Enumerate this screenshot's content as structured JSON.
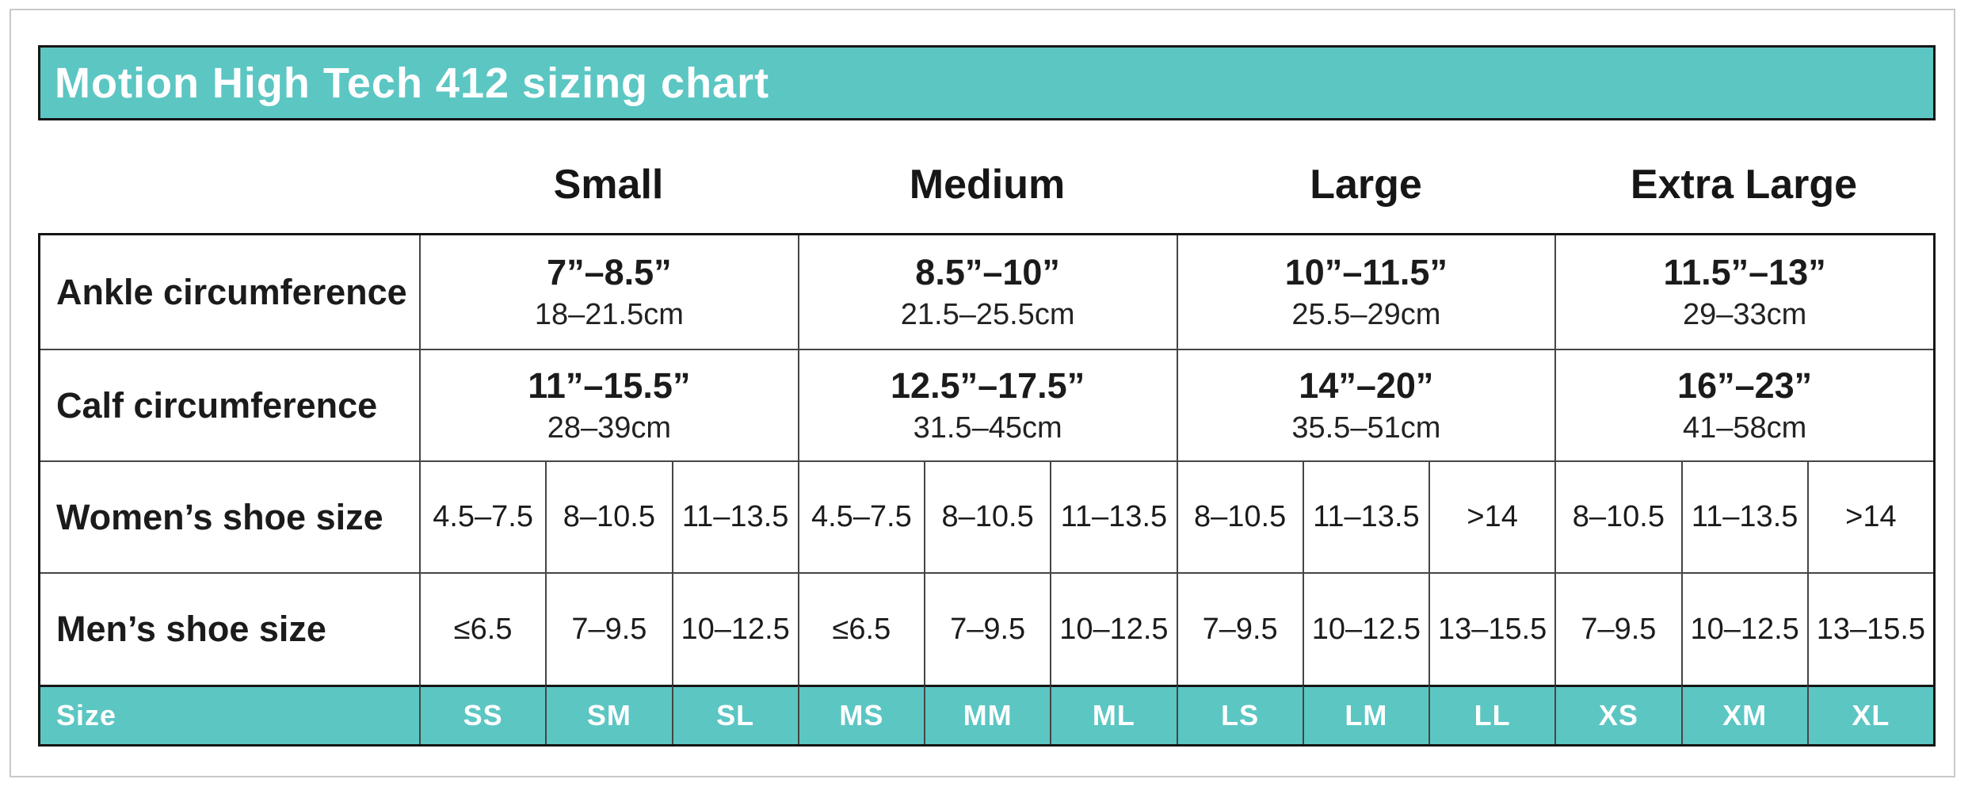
{
  "title": "Motion High Tech 412 sizing chart",
  "colors": {
    "teal": "#5CC6C3",
    "title_text": "#FFFFFF",
    "body_text": "#1B1B1B",
    "table_border": "#161616",
    "grid_line": "#454545",
    "page_frame": "#C9C9C9"
  },
  "group_headers": [
    {
      "label": "Small"
    },
    {
      "label": "Medium"
    },
    {
      "label": "Large"
    },
    {
      "label": "Extra Large"
    }
  ],
  "rows": {
    "ankle": {
      "label": "Ankle circumference",
      "groups": [
        {
          "inches": "7”–8.5”",
          "cm": "18–21.5cm"
        },
        {
          "inches": "8.5”–10”",
          "cm": "21.5–25.5cm"
        },
        {
          "inches": "10”–11.5”",
          "cm": "25.5–29cm"
        },
        {
          "inches": "11.5”–13”",
          "cm": "29–33cm"
        }
      ]
    },
    "calf": {
      "label": "Calf circumference",
      "groups": [
        {
          "inches": "11”–15.5”",
          "cm": "28–39cm"
        },
        {
          "inches": "12.5”–17.5”",
          "cm": "31.5–45cm"
        },
        {
          "inches": "14”–20”",
          "cm": "35.5–51cm"
        },
        {
          "inches": "16”–23”",
          "cm": "41–58cm"
        }
      ]
    },
    "women": {
      "label": "Women’s shoe size",
      "values": [
        "4.5–7.5",
        "8–10.5",
        "11–13.5",
        "4.5–7.5",
        "8–10.5",
        "11–13.5",
        "8–10.5",
        "11–13.5",
        ">14",
        "8–10.5",
        "11–13.5",
        ">14"
      ]
    },
    "men": {
      "label": "Men’s shoe size",
      "values": [
        "≤6.5",
        "7–9.5",
        "10–12.5",
        "≤6.5",
        "7–9.5",
        "10–12.5",
        "7–9.5",
        "10–12.5",
        "13–15.5",
        "7–9.5",
        "10–12.5",
        "13–15.5"
      ]
    },
    "size": {
      "label": "Size",
      "values": [
        "SS",
        "SM",
        "SL",
        "MS",
        "MM",
        "ML",
        "LS",
        "LM",
        "LL",
        "XS",
        "XM",
        "XL"
      ]
    }
  }
}
